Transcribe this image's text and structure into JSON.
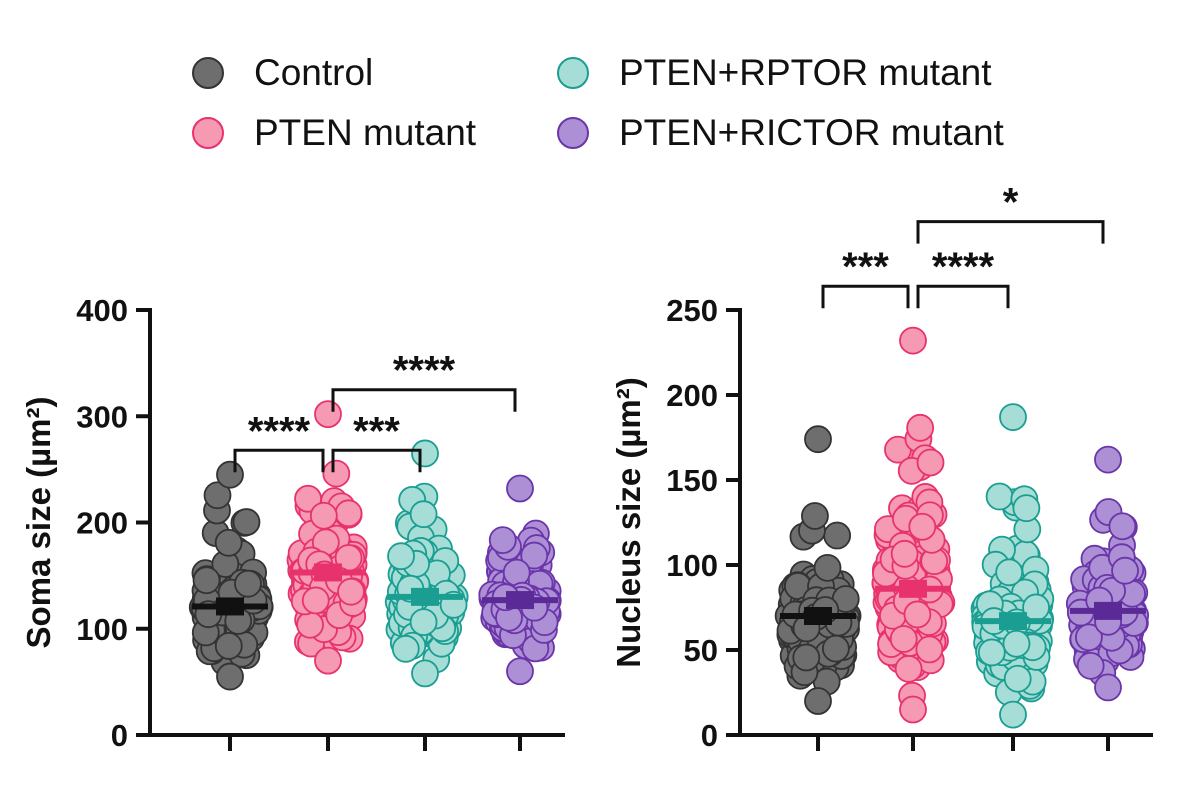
{
  "legend": [
    {
      "label": "Control",
      "color": "#6e6e6e",
      "edge": "#333333"
    },
    {
      "label": "PTEN mutant",
      "color": "#f59ab2",
      "edge": "#e8326e"
    },
    {
      "label": "PTEN+RPTOR mutant",
      "color": "#a6ddd6",
      "edge": "#1a9e92"
    },
    {
      "label": "PTEN+RICTOR mutant",
      "color": "#ad8fd6",
      "edge": "#6a35a8"
    }
  ],
  "chart_data": [
    {
      "type": "scatter",
      "title": "",
      "xlabel": "",
      "ylabel": "Soma size (µm²)",
      "ylim": [
        0,
        400
      ],
      "yticks": [
        "0",
        "100",
        "200",
        "300",
        "400"
      ],
      "groups": [
        "Control",
        "PTEN mutant",
        "PTEN+RPTOR mutant",
        "PTEN+RICTOR mutant"
      ],
      "series": [
        {
          "name": "Control",
          "mean": 121,
          "min": 55,
          "max": 245,
          "color": "#6e6e6e",
          "edge": "#333333",
          "line": "#111111"
        },
        {
          "name": "PTEN mutant",
          "mean": 153,
          "min": 70,
          "max": 302,
          "color": "#f59ab2",
          "edge": "#e8326e",
          "line": "#e8326e"
        },
        {
          "name": "PTEN+RPTOR mutant",
          "mean": 130,
          "min": 58,
          "max": 265,
          "color": "#a6ddd6",
          "edge": "#1a9e92",
          "line": "#1a9e92"
        },
        {
          "name": "PTEN+RICTOR mutant",
          "mean": 127,
          "min": 60,
          "max": 232,
          "color": "#ad8fd6",
          "edge": "#6a35a8",
          "line": "#5a2a96"
        }
      ],
      "significance": [
        {
          "from": 0,
          "to": 1,
          "label": "****",
          "y": 268
        },
        {
          "from": 1,
          "to": 2,
          "label": "***",
          "y": 268
        },
        {
          "from": 1,
          "to": 3,
          "label": "****",
          "y": 325
        }
      ]
    },
    {
      "type": "scatter",
      "title": "",
      "xlabel": "",
      "ylabel": "Nucleus size (µm²)",
      "ylim": [
        0,
        250
      ],
      "yticks": [
        "0",
        "50",
        "100",
        "150",
        "200",
        "250"
      ],
      "groups": [
        "Control",
        "PTEN mutant",
        "PTEN+RPTOR mutant",
        "PTEN+RICTOR mutant"
      ],
      "series": [
        {
          "name": "Control",
          "mean": 70,
          "min": 20,
          "max": 174,
          "color": "#6e6e6e",
          "edge": "#333333",
          "line": "#111111"
        },
        {
          "name": "PTEN mutant",
          "mean": 86,
          "min": 15,
          "max": 232,
          "color": "#f59ab2",
          "edge": "#e8326e",
          "line": "#e8326e"
        },
        {
          "name": "PTEN+RPTOR mutant",
          "mean": 67,
          "min": 12,
          "max": 187,
          "color": "#a6ddd6",
          "edge": "#1a9e92",
          "line": "#1a9e92"
        },
        {
          "name": "PTEN+RICTOR mutant",
          "mean": 73,
          "min": 28,
          "max": 162,
          "color": "#ad8fd6",
          "edge": "#6a35a8",
          "line": "#5a2a96"
        }
      ],
      "significance": [
        {
          "from": 0,
          "to": 1,
          "label": "***",
          "y": 264
        },
        {
          "from": 1,
          "to": 2,
          "label": "****",
          "y": 264
        },
        {
          "from": 1,
          "to": 3,
          "label": "*",
          "y": 302
        }
      ]
    }
  ]
}
